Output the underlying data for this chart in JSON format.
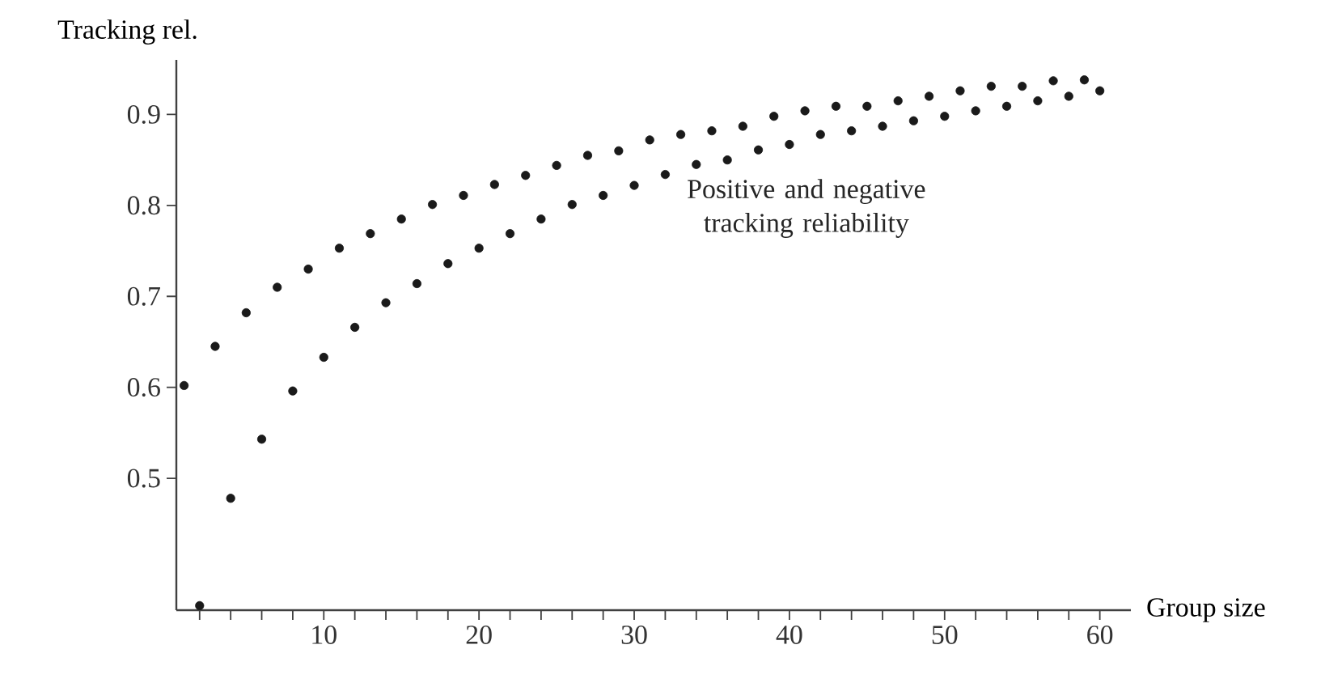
{
  "chart_data": {
    "type": "scatter",
    "xlabel": "Group size",
    "ylabel": "Tracking rel.",
    "annotations": [
      "Positive and negative tracking reliability"
    ],
    "grid": false,
    "xlim": [
      0.5,
      62
    ],
    "ylim": [
      0.355,
      0.96
    ],
    "xticks": [
      {
        "value": 2,
        "label": null
      },
      {
        "value": 4,
        "label": null
      },
      {
        "value": 6,
        "label": null
      },
      {
        "value": 8,
        "label": null
      },
      10,
      {
        "value": 12,
        "label": null
      },
      {
        "value": 14,
        "label": null
      },
      {
        "value": 16,
        "label": null
      },
      {
        "value": 18,
        "label": null
      },
      20,
      {
        "value": 22,
        "label": null
      },
      {
        "value": 24,
        "label": null
      },
      {
        "value": 26,
        "label": null
      },
      {
        "value": 28,
        "label": null
      },
      30,
      {
        "value": 32,
        "label": null
      },
      {
        "value": 34,
        "label": null
      },
      {
        "value": 36,
        "label": null
      },
      {
        "value": 38,
        "label": null
      },
      40,
      {
        "value": 42,
        "label": null
      },
      {
        "value": 44,
        "label": null
      },
      {
        "value": 46,
        "label": null
      },
      {
        "value": 48,
        "label": null
      },
      50,
      {
        "value": 52,
        "label": null
      },
      {
        "value": 54,
        "label": null
      },
      {
        "value": 56,
        "label": null
      },
      {
        "value": 58,
        "label": null
      },
      60
    ],
    "yticks": [
      0.5,
      0.6,
      0.7,
      0.8,
      0.9
    ],
    "series": [
      {
        "color": "#1a1a1a",
        "x": [
          1,
          3,
          5,
          7,
          9,
          11,
          13,
          15,
          17,
          19,
          21,
          23,
          25,
          27,
          29,
          31,
          33,
          35,
          37,
          39,
          41,
          43,
          45,
          47,
          49,
          51,
          53,
          55,
          57,
          59
        ],
        "values": [
          0.602,
          0.645,
          0.682,
          0.71,
          0.73,
          0.753,
          0.769,
          0.785,
          0.801,
          0.811,
          0.823,
          0.833,
          0.844,
          0.855,
          0.86,
          0.872,
          0.878,
          0.882,
          0.887,
          0.898,
          0.904,
          0.909,
          0.909,
          0.915,
          0.92,
          0.926,
          0.931,
          0.931,
          0.937,
          0.938
        ]
      },
      {
        "color": "#1a1a1a",
        "x": [
          2,
          4,
          6,
          8,
          10,
          12,
          14,
          16,
          18,
          20,
          22,
          24,
          26,
          28,
          30,
          32,
          34,
          36,
          38,
          40,
          42,
          44,
          46,
          48,
          50,
          52,
          54,
          56,
          58,
          60
        ],
        "values": [
          0.36,
          0.478,
          0.543,
          0.596,
          0.633,
          0.666,
          0.693,
          0.714,
          0.736,
          0.753,
          0.769,
          0.785,
          0.801,
          0.811,
          0.822,
          0.834,
          0.845,
          0.85,
          0.861,
          0.867,
          0.878,
          0.882,
          0.887,
          0.893,
          0.898,
          0.904,
          0.909,
          0.915,
          0.92,
          0.926
        ]
      }
    ]
  }
}
